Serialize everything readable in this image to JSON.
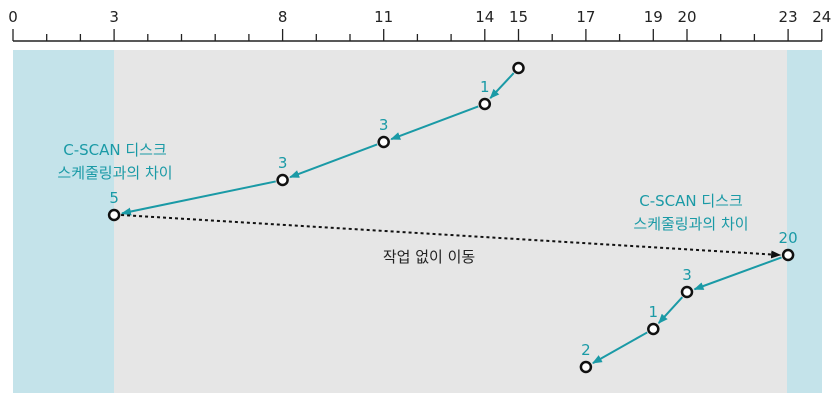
{
  "axis": {
    "min": 0,
    "max": 24,
    "labeled_ticks": [
      0,
      3,
      8,
      11,
      14,
      15,
      17,
      19,
      20,
      23,
      24
    ]
  },
  "colors": {
    "band_edge": "#c4e3ea",
    "band_middle": "#e6e6e6",
    "arrow": "#1a9aa6",
    "label": "#1a9aa6",
    "node_stroke": "#111111"
  },
  "points": [
    {
      "cyl": 15,
      "label": ""
    },
    {
      "cyl": 14,
      "label": "1"
    },
    {
      "cyl": 11,
      "label": "3"
    },
    {
      "cyl": 8,
      "label": "3"
    },
    {
      "cyl": 3,
      "label": "5"
    },
    {
      "cyl": 23,
      "label": "20"
    },
    {
      "cyl": 20,
      "label": "3"
    },
    {
      "cyl": 19,
      "label": "1"
    },
    {
      "cyl": 17,
      "label": "2"
    }
  ],
  "idle_move": {
    "from": 3,
    "to": 23,
    "label": "작업 없이 이동"
  },
  "annotations": {
    "left": [
      "C-SCAN 디스크",
      "스케줄링과의 차이"
    ],
    "right": [
      "C-SCAN 디스크",
      "스케줄링과의 차이"
    ]
  }
}
